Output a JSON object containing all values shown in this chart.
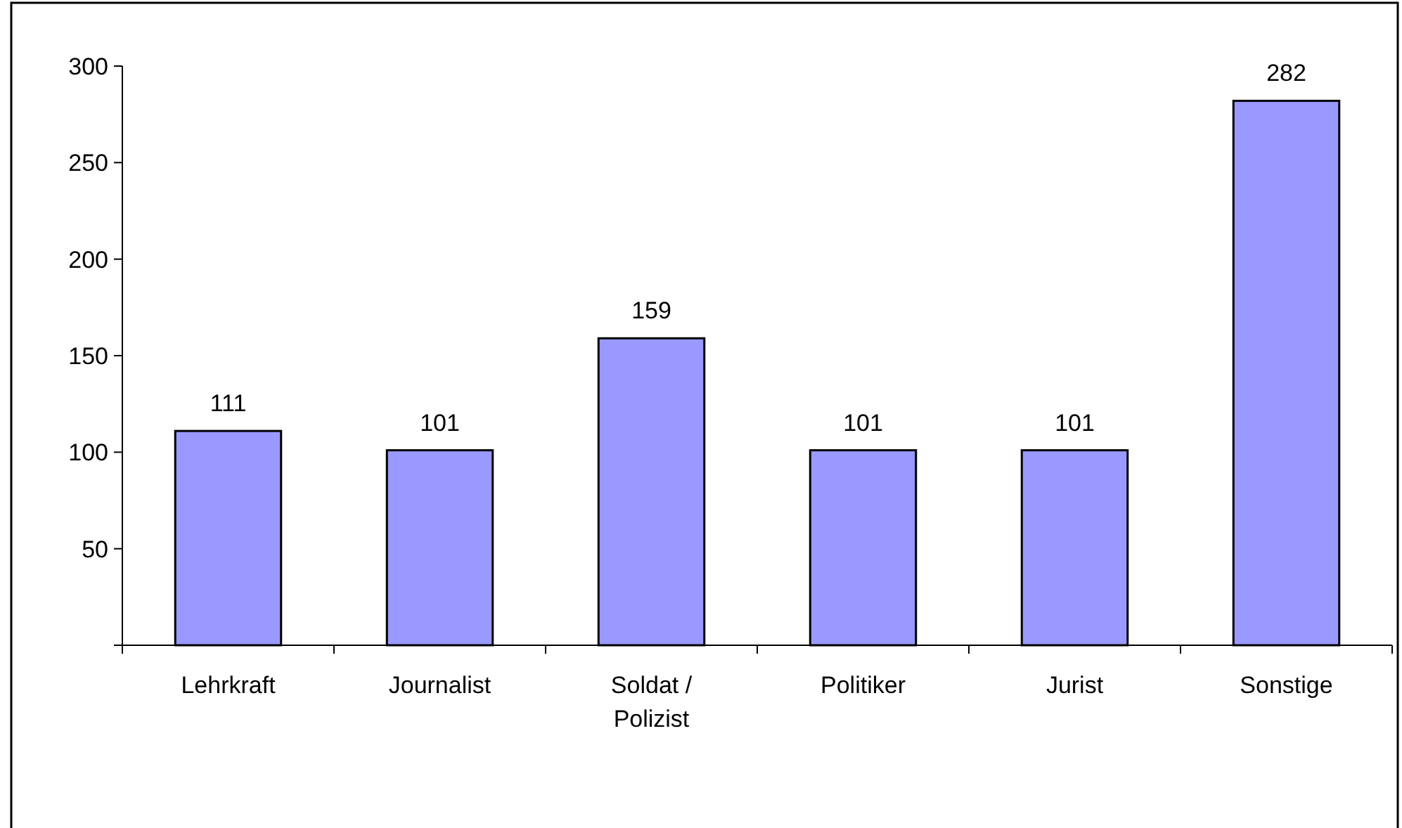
{
  "chart_data": {
    "type": "bar",
    "categories": [
      "Lehrkraft",
      "Journalist",
      "Soldat / Polizist",
      "Politiker",
      "Jurist",
      "Sonstige"
    ],
    "values": [
      111,
      101,
      159,
      101,
      101,
      282
    ],
    "color": "#9999ff",
    "ylim": [
      0,
      300
    ],
    "yticks": [
      {
        "value": 0,
        "label": null
      },
      50,
      100,
      150,
      200,
      250,
      300
    ],
    "grid": false,
    "data_labels": true
  }
}
